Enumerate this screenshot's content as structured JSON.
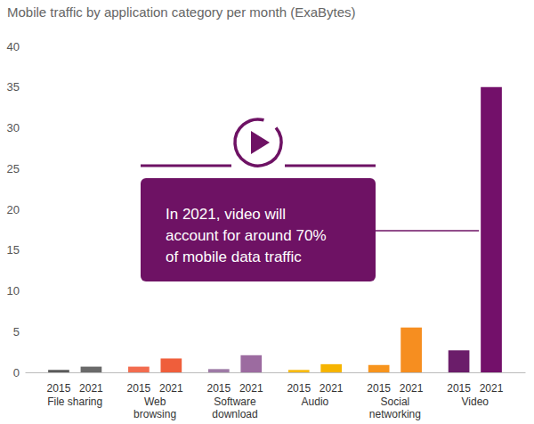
{
  "chart_data": {
    "type": "bar",
    "title": "Mobile traffic by application category per month (ExaBytes)",
    "categories": [
      "File sharing",
      "Web\nbrowsing",
      "Software\ndownload",
      "Audio",
      "Social\nnetworking",
      "Video"
    ],
    "series": [
      {
        "name": "2015",
        "colors": [
          "#5a5a5a",
          "#f26c4f",
          "#9e7aa6",
          "#f7bb13",
          "#f7941d",
          "#6b1d6a"
        ],
        "values": [
          0.3,
          0.7,
          0.4,
          0.3,
          0.9,
          2.7
        ]
      },
      {
        "name": "2021",
        "colors": [
          "#6a6a6a",
          "#ef5e3b",
          "#9c6ba0",
          "#f6b400",
          "#f68e20",
          "#73106a"
        ],
        "values": [
          0.7,
          1.7,
          2.1,
          1.0,
          5.5,
          35
        ]
      }
    ],
    "ylim": [
      0,
      40
    ],
    "yticks": [
      0,
      5,
      10,
      15,
      20,
      25,
      30,
      35,
      40
    ],
    "grid": false,
    "annotation": "In 2021, video will\naccount for around 70%\nof mobile data traffic"
  }
}
